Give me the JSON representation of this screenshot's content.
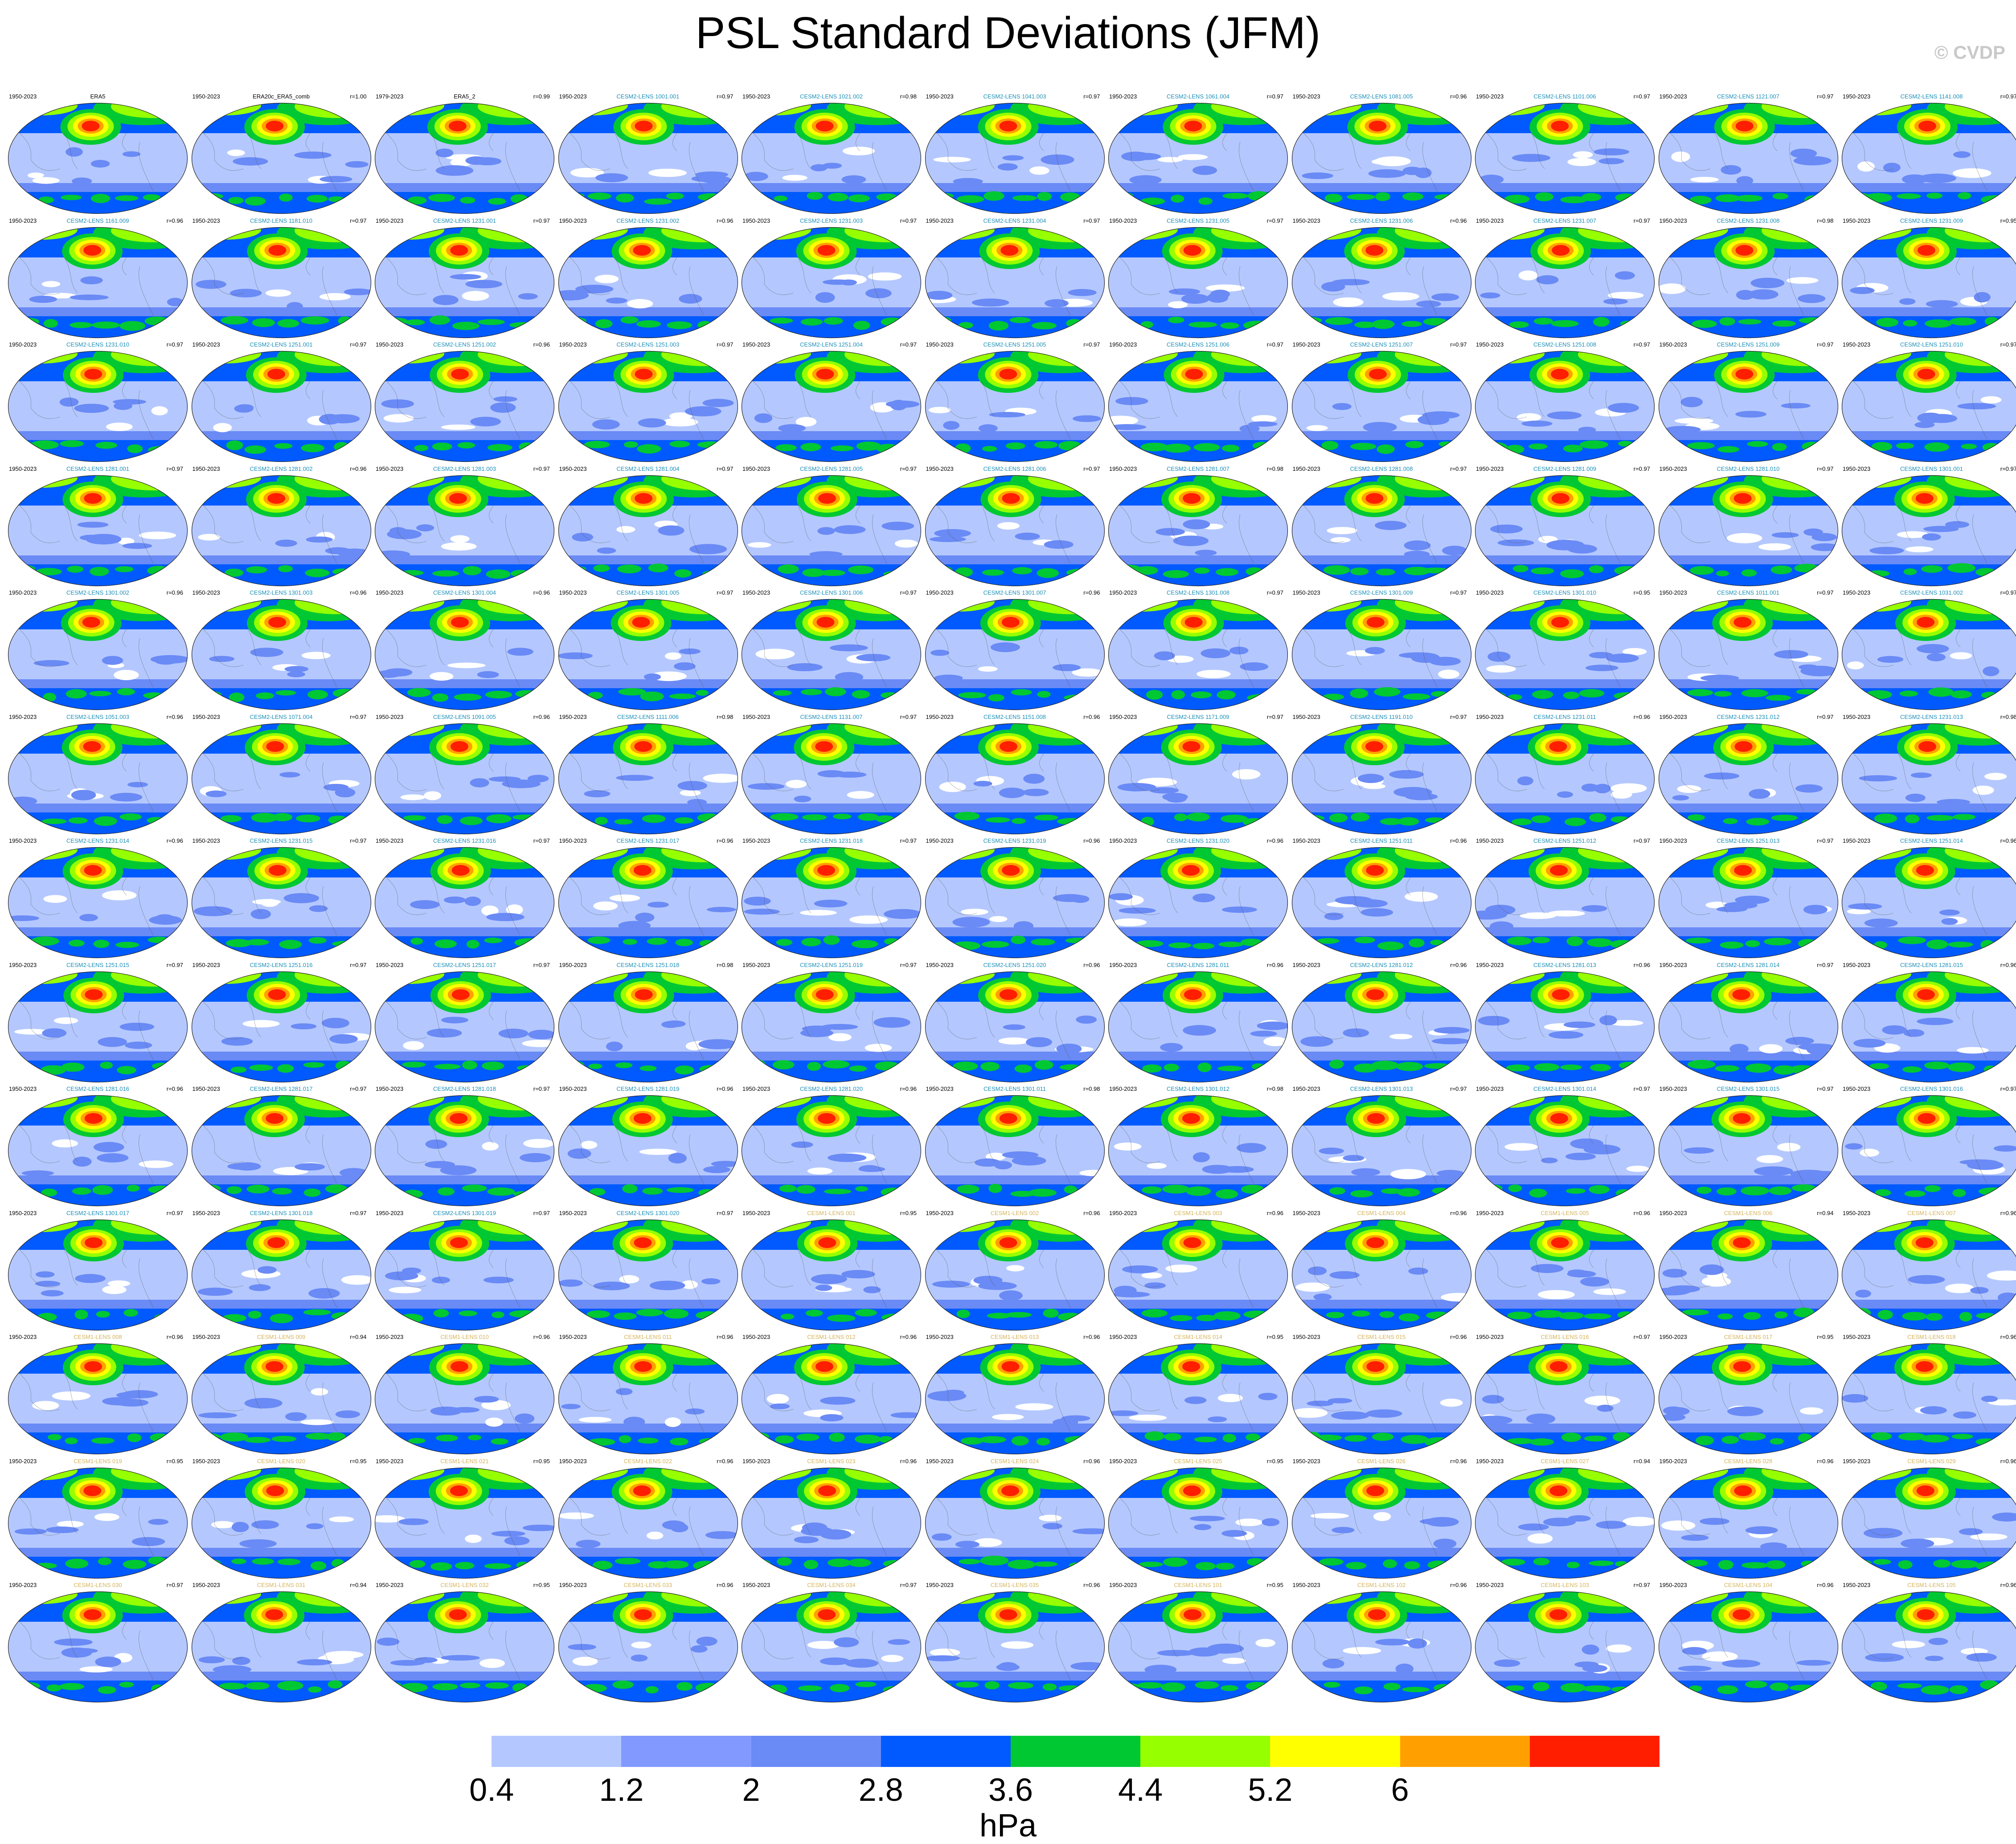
{
  "title": "PSL Standard Deviations (JFM)",
  "watermark": "© CVDP",
  "colorbar": {
    "colors": [
      "#ffffff",
      "#b4c8ff",
      "#8299ff",
      "#6a8af5",
      "#005aff",
      "#00c832",
      "#96ff00",
      "#ffff00",
      "#ffa000",
      "#ff1e00"
    ],
    "tick_labels": [
      "0.4",
      "1.2",
      "2",
      "2.8",
      "3.6",
      "4.4",
      "5.2",
      "6"
    ],
    "units": "hPa"
  },
  "chart_data": {
    "type": "map-panel-grid",
    "variable": "PSL",
    "season": "JFM",
    "rows": 13,
    "cols": 11,
    "contour_levels": [
      0.4,
      0.8,
      1.2,
      1.6,
      2,
      2.4,
      2.8,
      3.2,
      3.6,
      4,
      4.4,
      4.8,
      5.2,
      5.6,
      6
    ],
    "panels": [
      {
        "name": "ERA5",
        "period": "1950-2023",
        "r": ""
      },
      {
        "name": "ERA20c_ERA5_comb",
        "period": "1950-2023",
        "r": "r=1.00"
      },
      {
        "name": "ERA5_2",
        "period": "1979-2023",
        "r": "r=0.99"
      },
      {
        "name": "CESM2-LENS 1001.001",
        "period": "1950-2023",
        "r": "r=0.97"
      },
      {
        "name": "CESM2-LENS 1021.002",
        "period": "1950-2023",
        "r": "r=0.98"
      },
      {
        "name": "CESM2-LENS 1041.003",
        "period": "1950-2023",
        "r": "r=0.97"
      },
      {
        "name": "CESM2-LENS 1061.004",
        "period": "1950-2023",
        "r": "r=0.97"
      },
      {
        "name": "CESM2-LENS 1081.005",
        "period": "1950-2023",
        "r": "r=0.96"
      },
      {
        "name": "CESM2-LENS 1101.006",
        "period": "1950-2023",
        "r": "r=0.97"
      },
      {
        "name": "CESM2-LENS 1121.007",
        "period": "1950-2023",
        "r": "r=0.97"
      },
      {
        "name": "CESM2-LENS 1141.008",
        "period": "1950-2023",
        "r": "r=0.97"
      },
      {
        "name": "CESM2-LENS 1161.009",
        "period": "1950-2023",
        "r": "r=0.96"
      },
      {
        "name": "CESM2-LENS 1181.010",
        "period": "1950-2023",
        "r": "r=0.97"
      },
      {
        "name": "CESM2-LENS 1231.001",
        "period": "1950-2023",
        "r": "r=0.97"
      },
      {
        "name": "CESM2-LENS 1231.002",
        "period": "1950-2023",
        "r": "r=0.96"
      },
      {
        "name": "CESM2-LENS 1231.003",
        "period": "1950-2023",
        "r": "r=0.97"
      },
      {
        "name": "CESM2-LENS 1231.004",
        "period": "1950-2023",
        "r": "r=0.97"
      },
      {
        "name": "CESM2-LENS 1231.005",
        "period": "1950-2023",
        "r": "r=0.97"
      },
      {
        "name": "CESM2-LENS 1231.006",
        "period": "1950-2023",
        "r": "r=0.96"
      },
      {
        "name": "CESM2-LENS 1231.007",
        "period": "1950-2023",
        "r": "r=0.97"
      },
      {
        "name": "CESM2-LENS 1231.008",
        "period": "1950-2023",
        "r": "r=0.98"
      },
      {
        "name": "CESM2-LENS 1231.009",
        "period": "1950-2023",
        "r": "r=0.95"
      },
      {
        "name": "CESM2-LENS 1231.010",
        "period": "1950-2023",
        "r": "r=0.97"
      },
      {
        "name": "CESM2-LENS 1251.001",
        "period": "1950-2023",
        "r": "r=0.97"
      },
      {
        "name": "CESM2-LENS 1251.002",
        "period": "1950-2023",
        "r": "r=0.96"
      },
      {
        "name": "CESM2-LENS 1251.003",
        "period": "1950-2023",
        "r": "r=0.97"
      },
      {
        "name": "CESM2-LENS 1251.004",
        "period": "1950-2023",
        "r": "r=0.97"
      },
      {
        "name": "CESM2-LENS 1251.005",
        "period": "1950-2023",
        "r": "r=0.97"
      },
      {
        "name": "CESM2-LENS 1251.006",
        "period": "1950-2023",
        "r": "r=0.97"
      },
      {
        "name": "CESM2-LENS 1251.007",
        "period": "1950-2023",
        "r": "r=0.97"
      },
      {
        "name": "CESM2-LENS 1251.008",
        "period": "1950-2023",
        "r": "r=0.97"
      },
      {
        "name": "CESM2-LENS 1251.009",
        "period": "1950-2023",
        "r": "r=0.97"
      },
      {
        "name": "CESM2-LENS 1251.010",
        "period": "1950-2023",
        "r": "r=0.97"
      },
      {
        "name": "CESM2-LENS 1281.001",
        "period": "1950-2023",
        "r": "r=0.97"
      },
      {
        "name": "CESM2-LENS 1281.002",
        "period": "1950-2023",
        "r": "r=0.96"
      },
      {
        "name": "CESM2-LENS 1281.003",
        "period": "1950-2023",
        "r": "r=0.97"
      },
      {
        "name": "CESM2-LENS 1281.004",
        "period": "1950-2023",
        "r": "r=0.97"
      },
      {
        "name": "CESM2-LENS 1281.005",
        "period": "1950-2023",
        "r": "r=0.97"
      },
      {
        "name": "CESM2-LENS 1281.006",
        "period": "1950-2023",
        "r": "r=0.97"
      },
      {
        "name": "CESM2-LENS 1281.007",
        "period": "1950-2023",
        "r": "r=0.98"
      },
      {
        "name": "CESM2-LENS 1281.008",
        "period": "1950-2023",
        "r": "r=0.97"
      },
      {
        "name": "CESM2-LENS 1281.009",
        "period": "1950-2023",
        "r": "r=0.97"
      },
      {
        "name": "CESM2-LENS 1281.010",
        "period": "1950-2023",
        "r": "r=0.97"
      },
      {
        "name": "CESM2-LENS 1301.001",
        "period": "1950-2023",
        "r": "r=0.97"
      },
      {
        "name": "CESM2-LENS 1301.002",
        "period": "1950-2023",
        "r": "r=0.96"
      },
      {
        "name": "CESM2-LENS 1301.003",
        "period": "1950-2023",
        "r": "r=0.96"
      },
      {
        "name": "CESM2-LENS 1301.004",
        "period": "1950-2023",
        "r": "r=0.96"
      },
      {
        "name": "CESM2-LENS 1301.005",
        "period": "1950-2023",
        "r": "r=0.97"
      },
      {
        "name": "CESM2-LENS 1301.006",
        "period": "1950-2023",
        "r": "r=0.97"
      },
      {
        "name": "CESM2-LENS 1301.007",
        "period": "1950-2023",
        "r": "r=0.96"
      },
      {
        "name": "CESM2-LENS 1301.008",
        "period": "1950-2023",
        "r": "r=0.97"
      },
      {
        "name": "CESM2-LENS 1301.009",
        "period": "1950-2023",
        "r": "r=0.97"
      },
      {
        "name": "CESM2-LENS 1301.010",
        "period": "1950-2023",
        "r": "r=0.95"
      },
      {
        "name": "CESM2-LENS 1011.001",
        "period": "1950-2023",
        "r": "r=0.97"
      },
      {
        "name": "CESM2-LENS 1031.002",
        "period": "1950-2023",
        "r": "r=0.97"
      },
      {
        "name": "CESM2-LENS 1051.003",
        "period": "1950-2023",
        "r": "r=0.96"
      },
      {
        "name": "CESM2-LENS 1071.004",
        "period": "1950-2023",
        "r": "r=0.97"
      },
      {
        "name": "CESM2-LENS 1091.005",
        "period": "1950-2023",
        "r": "r=0.96"
      },
      {
        "name": "CESM2-LENS 1111.006",
        "period": "1950-2023",
        "r": "r=0.98"
      },
      {
        "name": "CESM2-LENS 1131.007",
        "period": "1950-2023",
        "r": "r=0.97"
      },
      {
        "name": "CESM2-LENS 1151.008",
        "period": "1950-2023",
        "r": "r=0.96"
      },
      {
        "name": "CESM2-LENS 1171.009",
        "period": "1950-2023",
        "r": "r=0.97"
      },
      {
        "name": "CESM2-LENS 1191.010",
        "period": "1950-2023",
        "r": "r=0.97"
      },
      {
        "name": "CESM2-LENS 1231.011",
        "period": "1950-2023",
        "r": "r=0.96"
      },
      {
        "name": "CESM2-LENS 1231.012",
        "period": "1950-2023",
        "r": "r=0.97"
      },
      {
        "name": "CESM2-LENS 1231.013",
        "period": "1950-2023",
        "r": "r=0.98"
      },
      {
        "name": "CESM2-LENS 1231.014",
        "period": "1950-2023",
        "r": "r=0.96"
      },
      {
        "name": "CESM2-LENS 1231.015",
        "period": "1950-2023",
        "r": "r=0.97"
      },
      {
        "name": "CESM2-LENS 1231.016",
        "period": "1950-2023",
        "r": "r=0.97"
      },
      {
        "name": "CESM2-LENS 1231.017",
        "period": "1950-2023",
        "r": "r=0.96"
      },
      {
        "name": "CESM2-LENS 1231.018",
        "period": "1950-2023",
        "r": "r=0.97"
      },
      {
        "name": "CESM2-LENS 1231.019",
        "period": "1950-2023",
        "r": "r=0.96"
      },
      {
        "name": "CESM2-LENS 1231.020",
        "period": "1950-2023",
        "r": "r=0.96"
      },
      {
        "name": "CESM2-LENS 1251.011",
        "period": "1950-2023",
        "r": "r=0.96"
      },
      {
        "name": "CESM2-LENS 1251.012",
        "period": "1950-2023",
        "r": "r=0.97"
      },
      {
        "name": "CESM2-LENS 1251.013",
        "period": "1950-2023",
        "r": "r=0.97"
      },
      {
        "name": "CESM2-LENS 1251.014",
        "period": "1950-2023",
        "r": "r=0.96"
      },
      {
        "name": "CESM2-LENS 1251.015",
        "period": "1950-2023",
        "r": "r=0.97"
      },
      {
        "name": "CESM2-LENS 1251.016",
        "period": "1950-2023",
        "r": "r=0.97"
      },
      {
        "name": "CESM2-LENS 1251.017",
        "period": "1950-2023",
        "r": "r=0.97"
      },
      {
        "name": "CESM2-LENS 1251.018",
        "period": "1950-2023",
        "r": "r=0.98"
      },
      {
        "name": "CESM2-LENS 1251.019",
        "period": "1950-2023",
        "r": "r=0.97"
      },
      {
        "name": "CESM2-LENS 1251.020",
        "period": "1950-2023",
        "r": "r=0.96"
      },
      {
        "name": "CESM2-LENS 1281.011",
        "period": "1950-2023",
        "r": "r=0.96"
      },
      {
        "name": "CESM2-LENS 1281.012",
        "period": "1950-2023",
        "r": "r=0.96"
      },
      {
        "name": "CESM2-LENS 1281.013",
        "period": "1950-2023",
        "r": "r=0.96"
      },
      {
        "name": "CESM2-LENS 1281.014",
        "period": "1950-2023",
        "r": "r=0.97"
      },
      {
        "name": "CESM2-LENS 1281.015",
        "period": "1950-2023",
        "r": "r=0.96"
      },
      {
        "name": "CESM2-LENS 1281.016",
        "period": "1950-2023",
        "r": "r=0.96"
      },
      {
        "name": "CESM2-LENS 1281.017",
        "period": "1950-2023",
        "r": "r=0.97"
      },
      {
        "name": "CESM2-LENS 1281.018",
        "period": "1950-2023",
        "r": "r=0.97"
      },
      {
        "name": "CESM2-LENS 1281.019",
        "period": "1950-2023",
        "r": "r=0.96"
      },
      {
        "name": "CESM2-LENS 1281.020",
        "period": "1950-2023",
        "r": "r=0.96"
      },
      {
        "name": "CESM2-LENS 1301.011",
        "period": "1950-2023",
        "r": "r=0.98"
      },
      {
        "name": "CESM2-LENS 1301.012",
        "period": "1950-2023",
        "r": "r=0.98"
      },
      {
        "name": "CESM2-LENS 1301.013",
        "period": "1950-2023",
        "r": "r=0.97"
      },
      {
        "name": "CESM2-LENS 1301.014",
        "period": "1950-2023",
        "r": "r=0.97"
      },
      {
        "name": "CESM2-LENS 1301.015",
        "period": "1950-2023",
        "r": "r=0.97"
      },
      {
        "name": "CESM2-LENS 1301.016",
        "period": "1950-2023",
        "r": "r=0.97"
      },
      {
        "name": "CESM2-LENS 1301.017",
        "period": "1950-2023",
        "r": "r=0.97"
      },
      {
        "name": "CESM2-LENS 1301.018",
        "period": "1950-2023",
        "r": "r=0.97"
      },
      {
        "name": "CESM2-LENS 1301.019",
        "period": "1950-2023",
        "r": "r=0.97"
      },
      {
        "name": "CESM2-LENS 1301.020",
        "period": "1950-2023",
        "r": "r=0.97"
      },
      {
        "name": "CESM1-LENS 001",
        "period": "1950-2023",
        "r": "r=0.95"
      },
      {
        "name": "CESM1-LENS 002",
        "period": "1950-2023",
        "r": "r=0.96"
      },
      {
        "name": "CESM1-LENS 003",
        "period": "1950-2023",
        "r": "r=0.96"
      },
      {
        "name": "CESM1-LENS 004",
        "period": "1950-2023",
        "r": "r=0.96"
      },
      {
        "name": "CESM1-LENS 005",
        "period": "1950-2023",
        "r": "r=0.96"
      },
      {
        "name": "CESM1-LENS 006",
        "period": "1950-2023",
        "r": "r=0.94"
      },
      {
        "name": "CESM1-LENS 007",
        "period": "1950-2023",
        "r": "r=0.96"
      },
      {
        "name": "CESM1-LENS 008",
        "period": "1950-2023",
        "r": "r=0.96"
      },
      {
        "name": "CESM1-LENS 009",
        "period": "1950-2023",
        "r": "r=0.94"
      },
      {
        "name": "CESM1-LENS 010",
        "period": "1950-2023",
        "r": "r=0.96"
      },
      {
        "name": "CESM1-LENS 011",
        "period": "1950-2023",
        "r": "r=0.96"
      },
      {
        "name": "CESM1-LENS 012",
        "period": "1950-2023",
        "r": "r=0.96"
      },
      {
        "name": "CESM1-LENS 013",
        "period": "1950-2023",
        "r": "r=0.96"
      },
      {
        "name": "CESM1-LENS 014",
        "period": "1950-2023",
        "r": "r=0.95"
      },
      {
        "name": "CESM1-LENS 015",
        "period": "1950-2023",
        "r": "r=0.96"
      },
      {
        "name": "CESM1-LENS 016",
        "period": "1950-2023",
        "r": "r=0.97"
      },
      {
        "name": "CESM1-LENS 017",
        "period": "1950-2023",
        "r": "r=0.95"
      },
      {
        "name": "CESM1-LENS 018",
        "period": "1950-2023",
        "r": "r=0.96"
      },
      {
        "name": "CESM1-LENS 019",
        "period": "1950-2023",
        "r": "r=0.95"
      },
      {
        "name": "CESM1-LENS 020",
        "period": "1950-2023",
        "r": "r=0.95"
      },
      {
        "name": "CESM1-LENS 021",
        "period": "1950-2023",
        "r": "r=0.95"
      },
      {
        "name": "CESM1-LENS 022",
        "period": "1950-2023",
        "r": "r=0.96"
      },
      {
        "name": "CESM1-LENS 023",
        "period": "1950-2023",
        "r": "r=0.96"
      },
      {
        "name": "CESM1-LENS 024",
        "period": "1950-2023",
        "r": "r=0.96"
      },
      {
        "name": "CESM1-LENS 025",
        "period": "1950-2023",
        "r": "r=0.95"
      },
      {
        "name": "CESM1-LENS 026",
        "period": "1950-2023",
        "r": "r=0.96"
      },
      {
        "name": "CESM1-LENS 027",
        "period": "1950-2023",
        "r": "r=0.94"
      },
      {
        "name": "CESM1-LENS 028",
        "period": "1950-2023",
        "r": "r=0.96"
      },
      {
        "name": "CESM1-LENS 029",
        "period": "1950-2023",
        "r": "r=0.96"
      },
      {
        "name": "CESM1-LENS 030",
        "period": "1950-2023",
        "r": "r=0.97"
      },
      {
        "name": "CESM1-LENS 031",
        "period": "1950-2023",
        "r": "r=0.94"
      },
      {
        "name": "CESM1-LENS 032",
        "period": "1950-2023",
        "r": "r=0.95"
      },
      {
        "name": "CESM1-LENS 033",
        "period": "1950-2023",
        "r": "r=0.96"
      },
      {
        "name": "CESM1-LENS 034",
        "period": "1950-2023",
        "r": "r=0.97"
      },
      {
        "name": "CESM1-LENS 035",
        "period": "1950-2023",
        "r": "r=0.96"
      },
      {
        "name": "CESM1-LENS 101",
        "period": "1950-2023",
        "r": "r=0.95"
      },
      {
        "name": "CESM1-LENS 102",
        "period": "1950-2023",
        "r": "r=0.96"
      },
      {
        "name": "CESM1-LENS 103",
        "period": "1950-2023",
        "r": "r=0.97"
      },
      {
        "name": "CESM1-LENS 104",
        "period": "1950-2023",
        "r": "r=0.96"
      },
      {
        "name": "CESM1-LENS 105",
        "period": "1950-2023",
        "r": "r=0.96"
      }
    ]
  }
}
